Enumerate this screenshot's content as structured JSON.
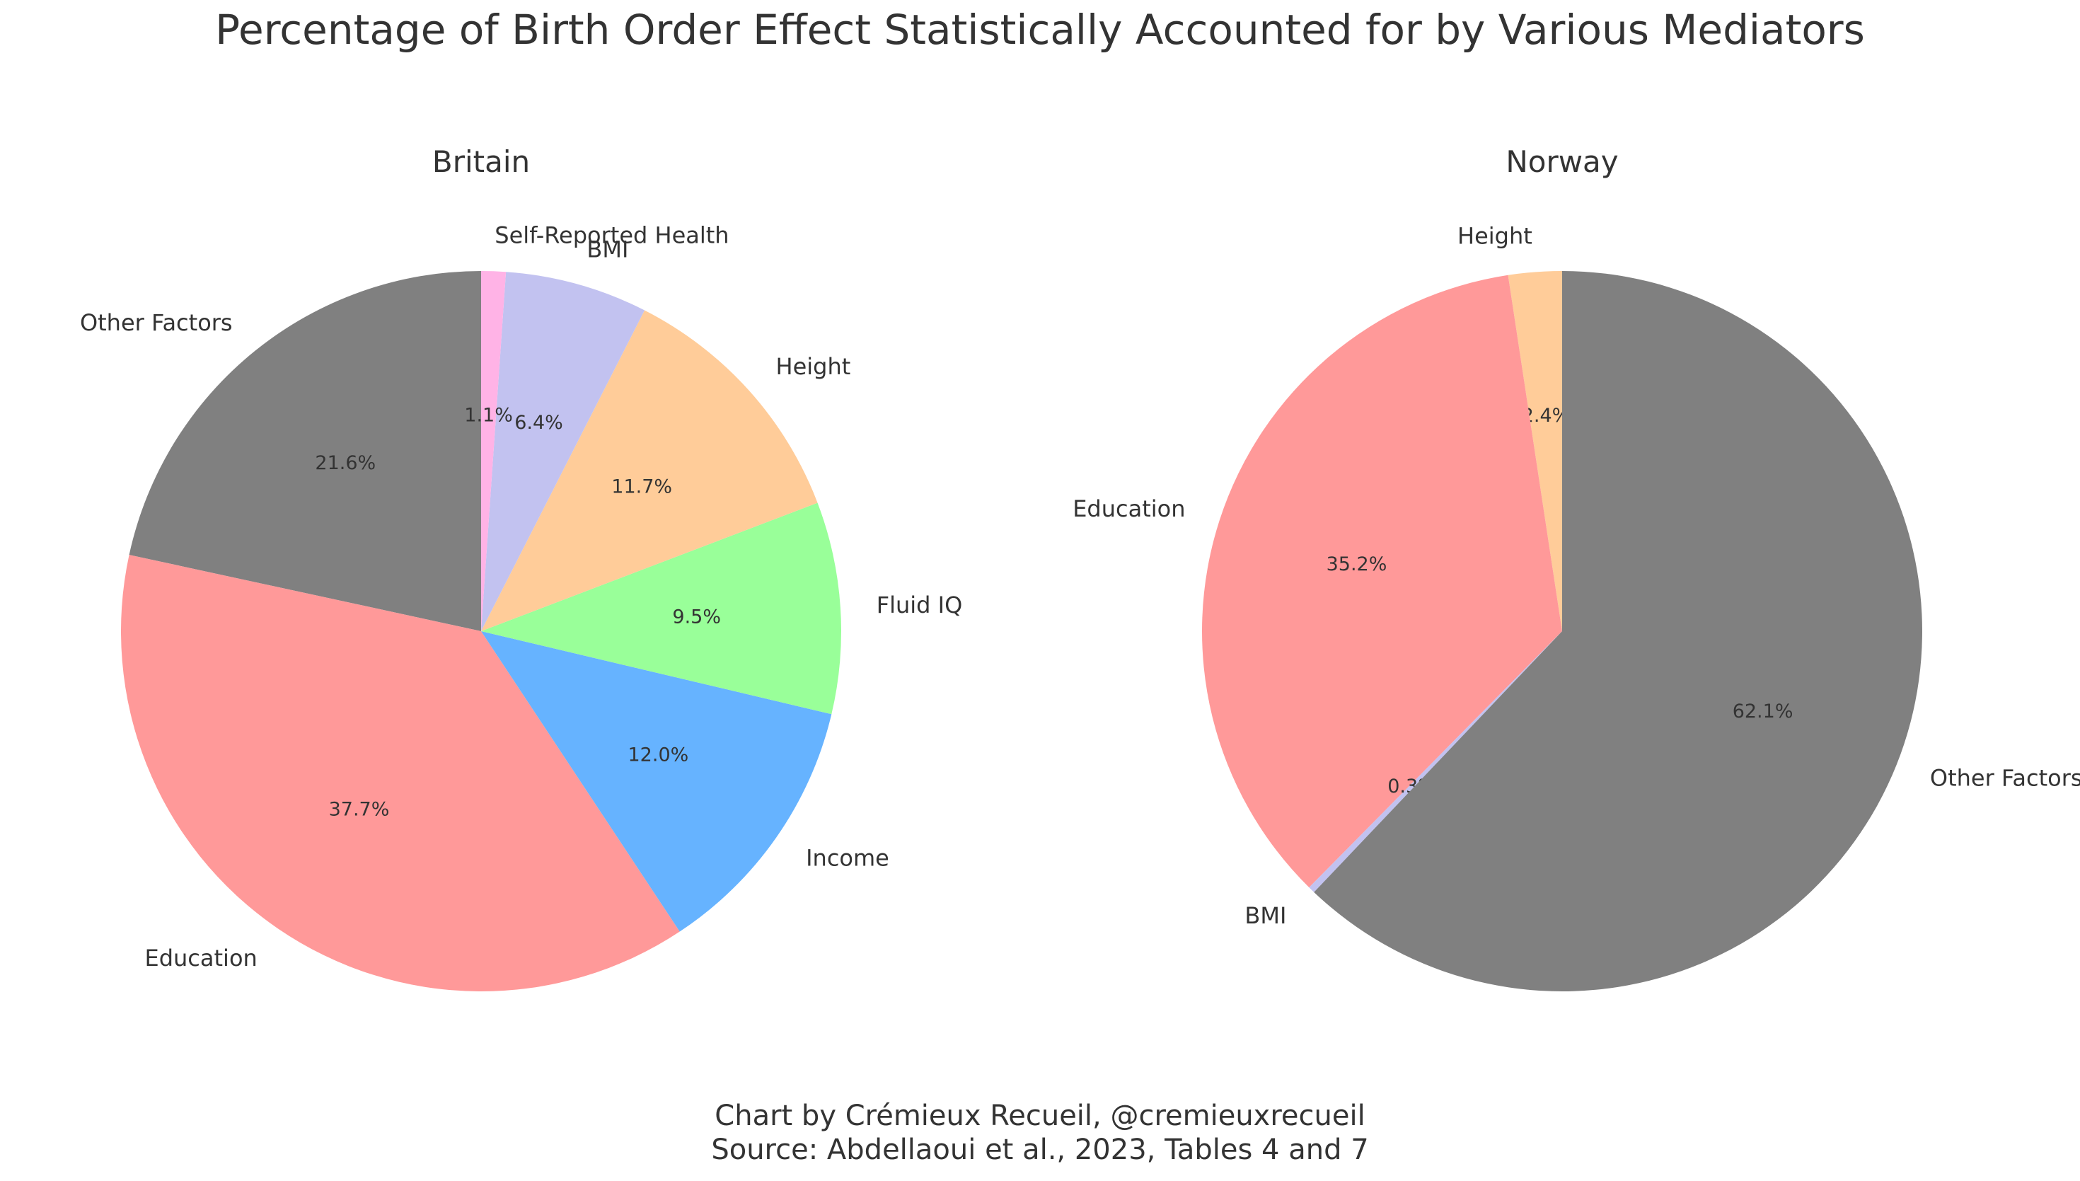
{
  "title": "Percentage of Birth Order Effect Statistically Accounted for by Various Mediators",
  "footer": {
    "line1": "Chart by Crémieux Recueil, @cremieuxrecueil",
    "line2": "Source: Abdellaoui et al., 2023, Tables 4 and 7"
  },
  "chart_data": [
    {
      "type": "pie",
      "title": "Britain",
      "start_angle_deg": 90,
      "direction": "counterclockwise",
      "slices": [
        {
          "label": "Other Factors",
          "value": 21.6,
          "pct_label": "21.6%",
          "color": "#808080"
        },
        {
          "label": "Education",
          "value": 37.7,
          "pct_label": "37.7%",
          "color": "#ff9999"
        },
        {
          "label": "Income",
          "value": 12.0,
          "pct_label": "12.0%",
          "color": "#66b3ff"
        },
        {
          "label": "Fluid IQ",
          "value": 9.5,
          "pct_label": "9.5%",
          "color": "#99ff99"
        },
        {
          "label": "Height",
          "value": 11.7,
          "pct_label": "11.7%",
          "color": "#ffcc99"
        },
        {
          "label": "BMI",
          "value": 6.4,
          "pct_label": "6.4%",
          "color": "#c2c2f0"
        },
        {
          "label": "Self-Reported Health",
          "value": 1.1,
          "pct_label": "1.1%",
          "color": "#ffb3e6"
        }
      ]
    },
    {
      "type": "pie",
      "title": "Norway",
      "start_angle_deg": 90,
      "direction": "counterclockwise",
      "slices": [
        {
          "label": "Height",
          "value": 2.4,
          "pct_label": "2.4%",
          "color": "#ffcc99"
        },
        {
          "label": "Education",
          "value": 35.2,
          "pct_label": "35.2%",
          "color": "#ff9999"
        },
        {
          "label": "BMI",
          "value": 0.3,
          "pct_label": "0.3%",
          "color": "#c2c2f0"
        },
        {
          "label": "Other Factors",
          "value": 62.1,
          "pct_label": "62.1%",
          "color": "#808080"
        }
      ]
    }
  ]
}
